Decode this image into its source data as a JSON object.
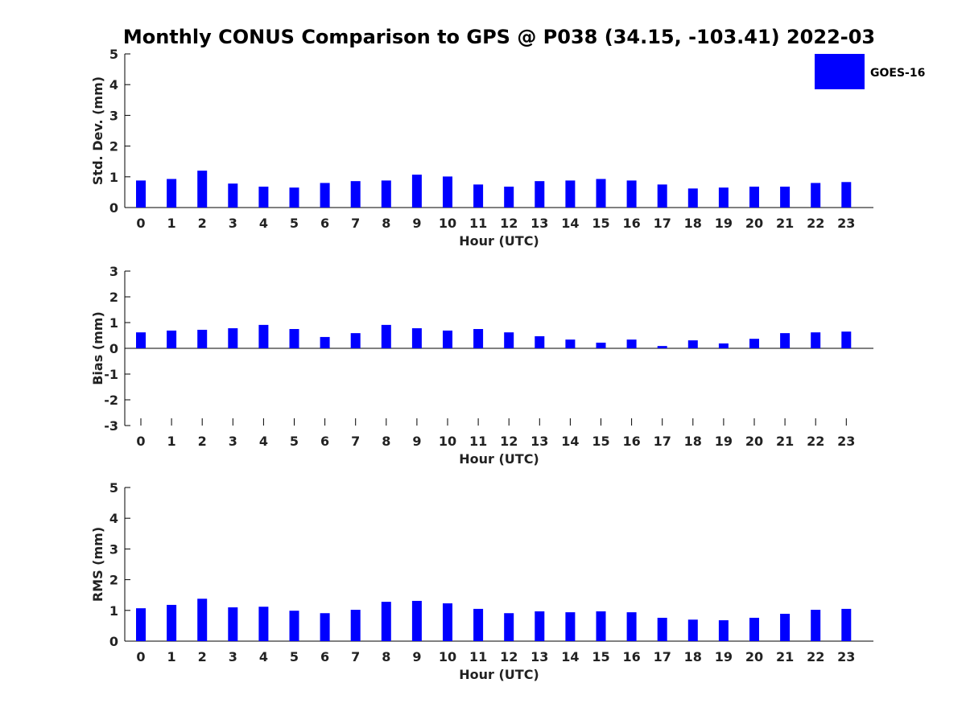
{
  "title": "Monthly CONUS Comparison to GPS @ P038 (34.15, -103.41) 2022-03",
  "legend": {
    "label": "GOES-16",
    "color": "#0000ff",
    "placement": "top-right"
  },
  "chart_data": [
    {
      "type": "bar",
      "xlabel": "Hour (UTC)",
      "ylabel": "Std. Dev. (mm)",
      "ylim": [
        0,
        5
      ],
      "yticks": [
        "0",
        "1",
        "2",
        "3",
        "4",
        "5"
      ],
      "categories": [
        "0",
        "1",
        "2",
        "3",
        "4",
        "5",
        "6",
        "7",
        "8",
        "9",
        "10",
        "11",
        "12",
        "13",
        "14",
        "15",
        "16",
        "17",
        "18",
        "19",
        "20",
        "21",
        "22",
        "23"
      ],
      "series": [
        {
          "name": "GOES-16",
          "values": [
            0.88,
            0.93,
            1.2,
            0.78,
            0.68,
            0.65,
            0.8,
            0.86,
            0.88,
            1.07,
            1.01,
            0.75,
            0.68,
            0.86,
            0.88,
            0.93,
            0.88,
            0.75,
            0.62,
            0.65,
            0.68,
            0.68,
            0.8,
            0.83
          ]
        }
      ]
    },
    {
      "type": "bar",
      "xlabel": "Hour (UTC)",
      "ylabel": "Bias (mm)",
      "ylim": [
        -3,
        3
      ],
      "yticks": [
        "-3",
        "-2",
        "-1",
        "0",
        "1",
        "2",
        "3"
      ],
      "categories": [
        "0",
        "1",
        "2",
        "3",
        "4",
        "5",
        "6",
        "7",
        "8",
        "9",
        "10",
        "11",
        "12",
        "13",
        "14",
        "15",
        "16",
        "17",
        "18",
        "19",
        "20",
        "21",
        "22",
        "23"
      ],
      "series": [
        {
          "name": "GOES-16",
          "values": [
            0.62,
            0.69,
            0.72,
            0.78,
            0.91,
            0.75,
            0.44,
            0.59,
            0.91,
            0.78,
            0.69,
            0.75,
            0.62,
            0.47,
            0.34,
            0.22,
            0.34,
            0.09,
            0.31,
            0.19,
            0.37,
            0.59,
            0.62,
            0.65
          ]
        }
      ]
    },
    {
      "type": "bar",
      "xlabel": "Hour (UTC)",
      "ylabel": "RMS (mm)",
      "ylim": [
        0,
        5
      ],
      "yticks": [
        "0",
        "1",
        "2",
        "3",
        "4",
        "5"
      ],
      "categories": [
        "0",
        "1",
        "2",
        "3",
        "4",
        "5",
        "6",
        "7",
        "8",
        "9",
        "10",
        "11",
        "12",
        "13",
        "14",
        "15",
        "16",
        "17",
        "18",
        "19",
        "20",
        "21",
        "22",
        "23"
      ],
      "series": [
        {
          "name": "GOES-16",
          "values": [
            1.07,
            1.18,
            1.38,
            1.1,
            1.12,
            0.99,
            0.91,
            1.02,
            1.28,
            1.31,
            1.23,
            1.05,
            0.91,
            0.97,
            0.94,
            0.97,
            0.94,
            0.76,
            0.7,
            0.68,
            0.76,
            0.89,
            1.02,
            1.05
          ]
        }
      ]
    }
  ]
}
